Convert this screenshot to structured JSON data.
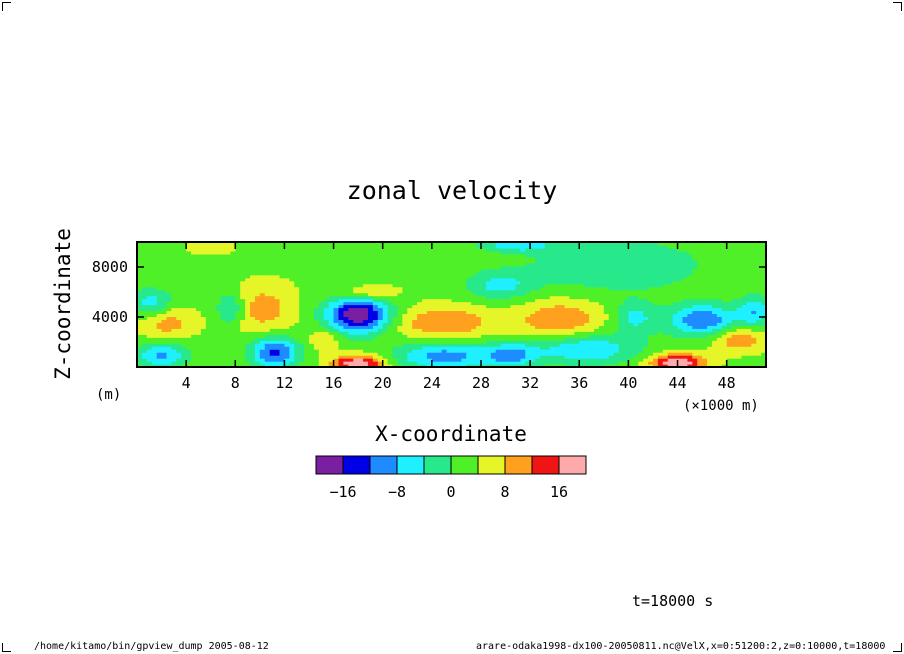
{
  "chart_data": {
    "type": "heatmap",
    "title": "zonal velocity",
    "xlabel": "X-coordinate",
    "ylabel": "Z-coordinate",
    "x_unit_label": "(×1000 m)",
    "y_unit_label": "(m)",
    "xlim": [
      0,
      51.2
    ],
    "ylim": [
      0,
      10000
    ],
    "x_ticks": [
      4,
      8,
      12,
      16,
      20,
      24,
      28,
      32,
      36,
      40,
      44,
      48
    ],
    "y_ticks": [
      4000,
      8000
    ],
    "levels": [
      -20,
      -16,
      -12,
      -8,
      -4,
      0,
      4,
      8,
      12,
      16,
      20
    ],
    "level_colors": [
      "#7a1fa2",
      "#0000e6",
      "#1e8cff",
      "#1ef0ff",
      "#28e88c",
      "#50f028",
      "#e6f528",
      "#ffa01e",
      "#f01414",
      "#ffaaaa"
    ],
    "colorbar_ticks": [
      -16,
      -8,
      0,
      8,
      16
    ],
    "background_value": 3,
    "features": [
      {
        "x": 2.5,
        "z": 3600,
        "value": 10,
        "sx": 1.5,
        "sz": 900
      },
      {
        "x": 1.2,
        "z": 5200,
        "value": -6,
        "sx": 1.2,
        "sz": 800
      },
      {
        "x": 2.0,
        "z": 1000,
        "value": -9,
        "sx": 1.5,
        "sz": 700
      },
      {
        "x": 10.3,
        "z": 4700,
        "value": 10,
        "sx": 1.8,
        "sz": 1400
      },
      {
        "x": 7.6,
        "z": 4700,
        "value": -6,
        "sx": 0.8,
        "sz": 900
      },
      {
        "x": 11.2,
        "z": 1200,
        "value": -13,
        "sx": 1.4,
        "sz": 900
      },
      {
        "x": 15.2,
        "z": 2200,
        "value": 9,
        "sx": 0.8,
        "sz": 600
      },
      {
        "x": 18.0,
        "z": 4200,
        "value": -20,
        "sx": 1.8,
        "sz": 1000
      },
      {
        "x": 18.0,
        "z": 300,
        "value": 20,
        "sx": 1.5,
        "sz": 500
      },
      {
        "x": 19.0,
        "z": 6000,
        "value": 10,
        "sx": 1.5,
        "sz": 400
      },
      {
        "x": 25.0,
        "z": 3600,
        "value": 12,
        "sx": 2.8,
        "sz": 900
      },
      {
        "x": 25.0,
        "z": 900,
        "value": -10,
        "sx": 2.8,
        "sz": 800
      },
      {
        "x": 30.5,
        "z": 1000,
        "value": -8,
        "sx": 1.5,
        "sz": 700
      },
      {
        "x": 29.5,
        "z": 6600,
        "value": -5,
        "sx": 2.0,
        "sz": 800
      },
      {
        "x": 34.5,
        "z": 3800,
        "value": 12,
        "sx": 2.4,
        "sz": 1100
      },
      {
        "x": 36.5,
        "z": 1500,
        "value": -8,
        "sx": 3.0,
        "sz": 900
      },
      {
        "x": 39.0,
        "z": 8200,
        "value": -4,
        "sx": 5.0,
        "sz": 1500
      },
      {
        "x": 40.5,
        "z": 4000,
        "value": -5,
        "sx": 1.2,
        "sz": 900
      },
      {
        "x": 44.0,
        "z": 400,
        "value": 20,
        "sx": 1.6,
        "sz": 500
      },
      {
        "x": 46.0,
        "z": 3800,
        "value": -12,
        "sx": 2.0,
        "sz": 900
      },
      {
        "x": 49.0,
        "z": 2300,
        "value": 12,
        "sx": 1.5,
        "sz": 700
      },
      {
        "x": 50.3,
        "z": 4500,
        "value": -7,
        "sx": 1.0,
        "sz": 900
      },
      {
        "x": 31.0,
        "z": 9800,
        "value": -6,
        "sx": 2.2,
        "sz": 400
      },
      {
        "x": 6.0,
        "z": 9700,
        "value": 8,
        "sx": 1.2,
        "sz": 400
      }
    ],
    "grid": false,
    "legend": "colorbar-below"
  },
  "annotations": {
    "time": "t=18000 s",
    "footer_left": "/home/kitamo/bin/gpview_dump  2005-08-12",
    "footer_right": "arare-odaka1998-dx100-20050811.nc@VelX,x=0:51200:2,z=0:10000,t=18000"
  }
}
